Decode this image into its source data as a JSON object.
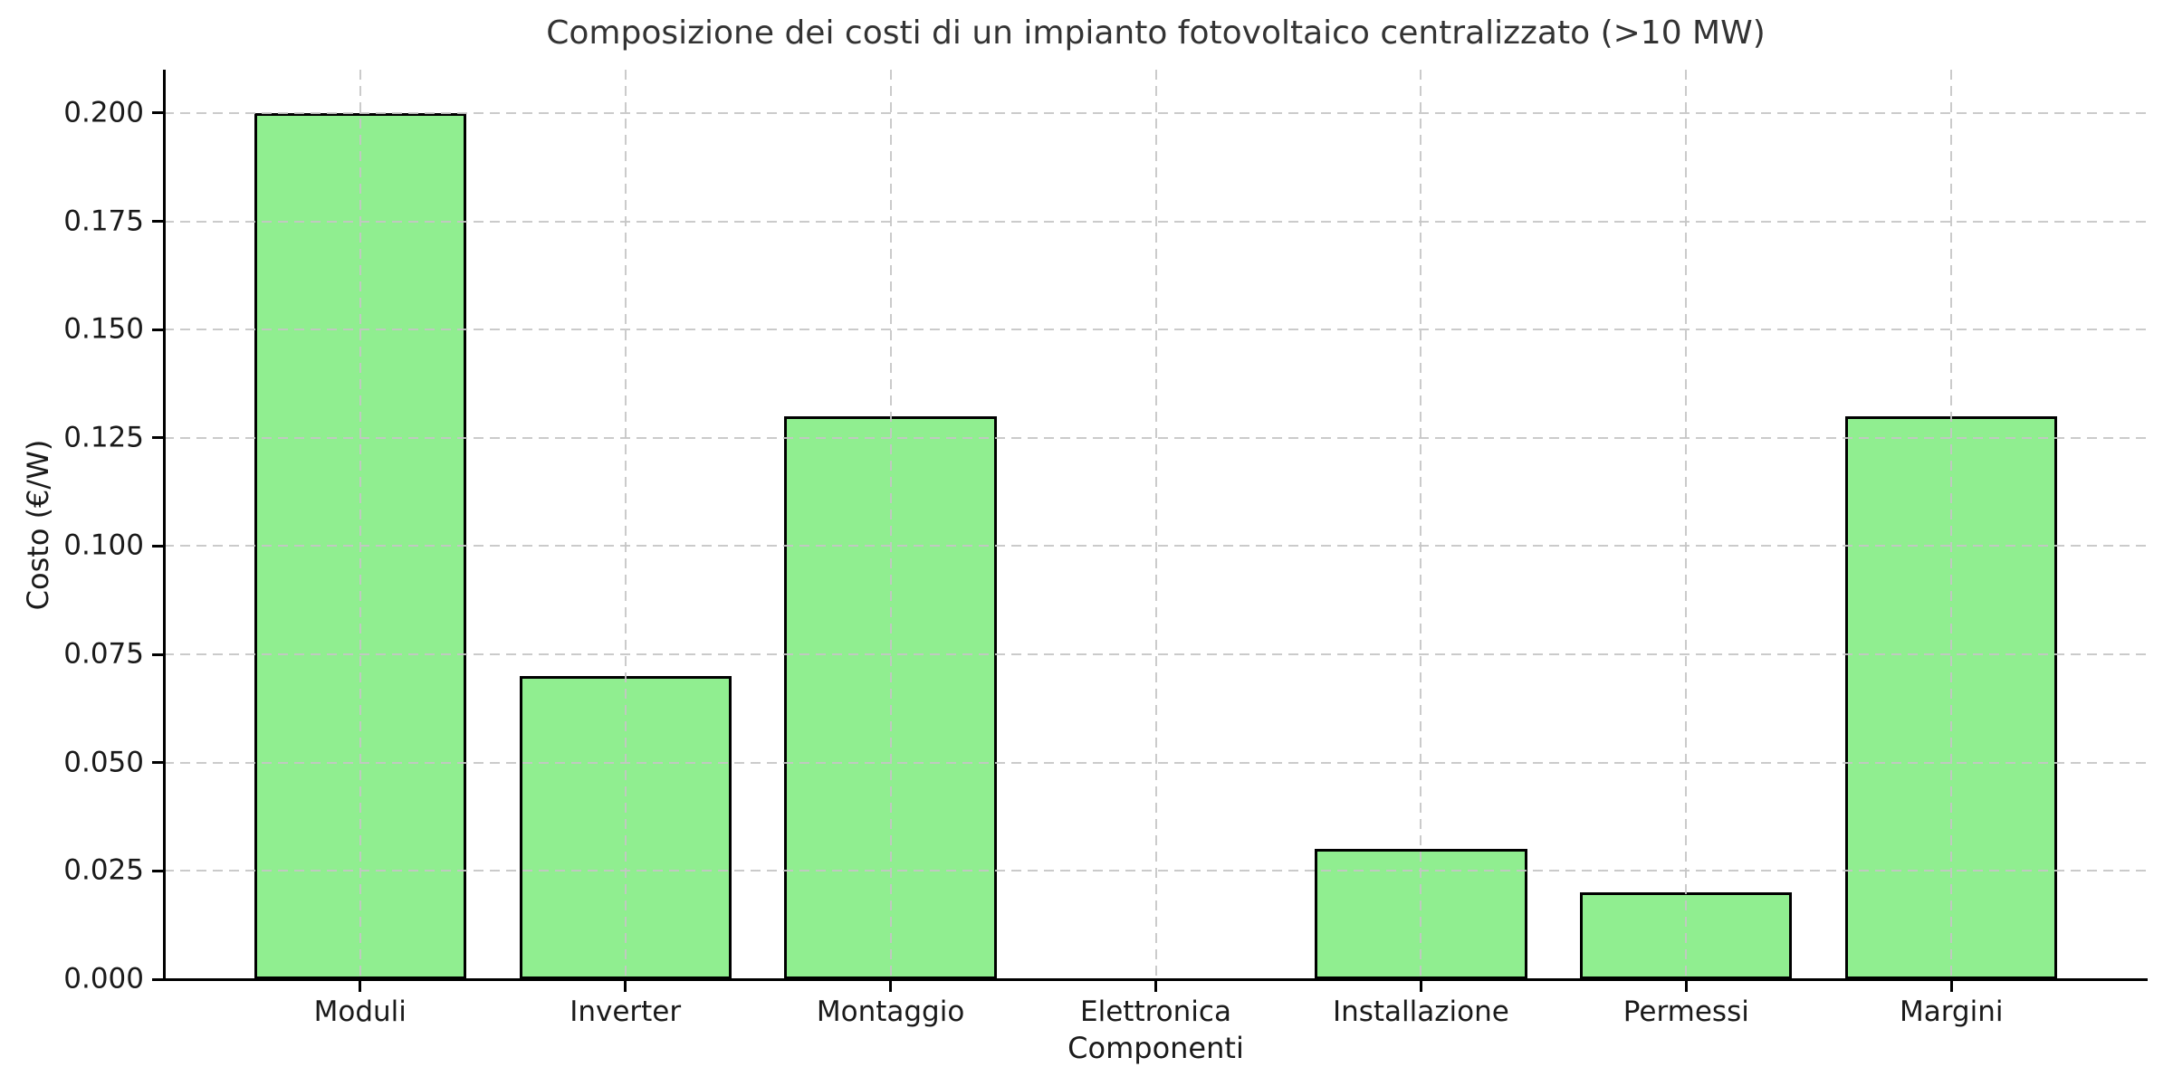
{
  "chart_data": {
    "type": "bar",
    "title": "Composizione dei costi di un impianto fotovoltaico centralizzato (>10 MW)",
    "xlabel": "Componenti",
    "ylabel": "Costo (€/W)",
    "categories": [
      "Moduli",
      "Inverter",
      "Montaggio",
      "Elettronica",
      "Installazione",
      "Permessi",
      "Margini"
    ],
    "values": [
      0.2,
      0.07,
      0.13,
      0.0,
      0.03,
      0.02,
      0.13
    ],
    "ylim": [
      0,
      0.21
    ],
    "yticks": [
      {
        "value": 0.0,
        "label": "0.000"
      },
      {
        "value": 0.025,
        "label": "0.025"
      },
      {
        "value": 0.05,
        "label": "0.050"
      },
      {
        "value": 0.075,
        "label": "0.075"
      },
      {
        "value": 0.1,
        "label": "0.100"
      },
      {
        "value": 0.125,
        "label": "0.125"
      },
      {
        "value": 0.15,
        "label": "0.150"
      },
      {
        "value": 0.175,
        "label": "0.175"
      },
      {
        "value": 0.2,
        "label": "0.200"
      }
    ],
    "bar_width_units": 0.8,
    "grid": true,
    "grid_style": "dashed",
    "legend": "none",
    "colors": {
      "bar_fill": "#90EE90",
      "bar_edge": "#000000",
      "grid": "#c5c5c5",
      "axis": "#000000",
      "text": "#1a1a1a"
    }
  }
}
